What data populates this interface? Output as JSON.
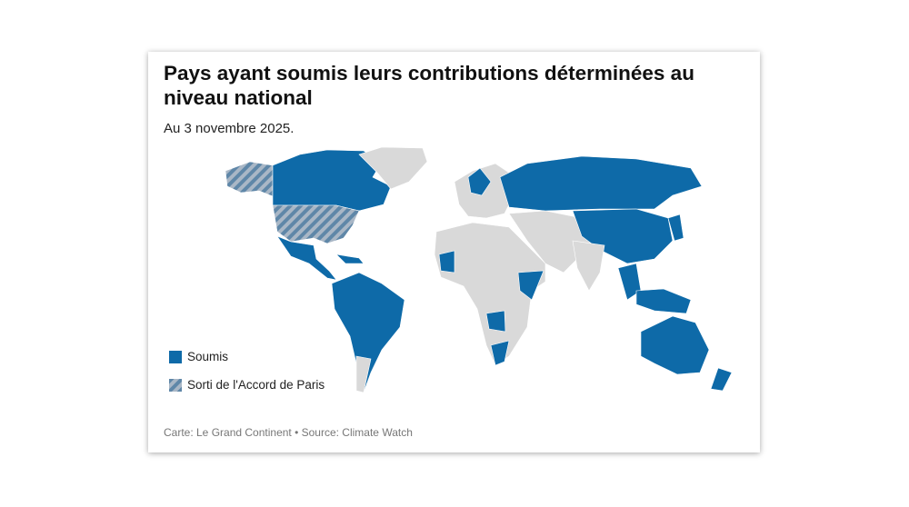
{
  "header": {
    "title": "Pays ayant soumis leurs contributions déterminées au niveau national",
    "subtitle": "Au 3 novembre 2025."
  },
  "legend": [
    {
      "label": "Soumis"
    },
    {
      "label": "Sorti de l'Accord de Paris"
    }
  ],
  "footer": {
    "source": "Carte: Le Grand Continent • Source: Climate Watch"
  }
}
